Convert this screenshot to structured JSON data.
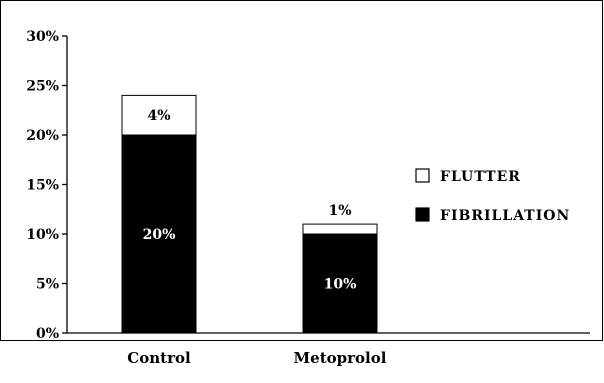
{
  "chart_data": {
    "type": "bar",
    "stacked": true,
    "categories": [
      "Control",
      "Metoprolol"
    ],
    "series": [
      {
        "name": "FIBRILLATION",
        "values": [
          20,
          10
        ],
        "labels": [
          "20%",
          "10%"
        ],
        "color": "#000000",
        "label_color": "#ffffff"
      },
      {
        "name": "FLUTTER",
        "values": [
          4,
          1
        ],
        "labels": [
          "4%",
          "1%"
        ],
        "color": "#ffffff",
        "label_color": "#000000"
      }
    ],
    "yticks": [
      {
        "value": 0,
        "label": "0%"
      },
      {
        "value": 5,
        "label": "5%"
      },
      {
        "value": 10,
        "label": "10%"
      },
      {
        "value": 15,
        "label": "15%"
      },
      {
        "value": 20,
        "label": "20%"
      },
      {
        "value": 25,
        "label": "25%"
      },
      {
        "value": 30,
        "label": "30%"
      }
    ],
    "ylim": [
      0,
      30
    ],
    "title": "",
    "xlabel": "",
    "ylabel": "",
    "grid": false,
    "legend": {
      "placement": "right",
      "entries": [
        "FLUTTER",
        "FIBRILLATION"
      ]
    }
  }
}
